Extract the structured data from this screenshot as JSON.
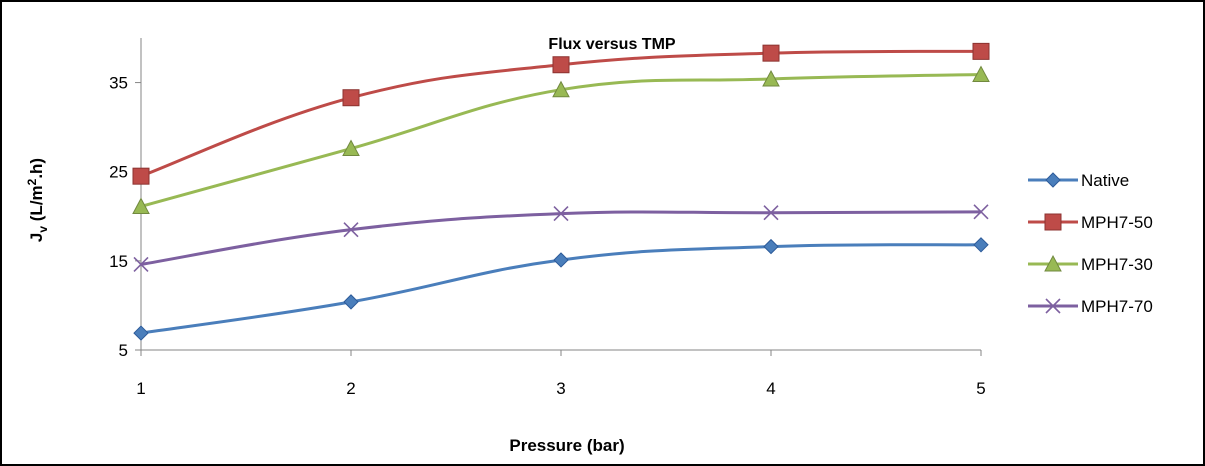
{
  "chart_data": {
    "type": "line",
    "title": "Flux versus TMP",
    "xlabel": "Pressure (bar)",
    "ylabel": {
      "main": "J",
      "sub": "v",
      "rest": " (L/m",
      "sup": "2",
      "end": ".h)"
    },
    "x": [
      1,
      2,
      3,
      4,
      5
    ],
    "xlim": [
      1,
      5
    ],
    "ylim": [
      5,
      40
    ],
    "yticks": [
      5,
      15,
      25,
      35
    ],
    "grid": false,
    "legend_position": "right",
    "series": [
      {
        "name": "Native",
        "values": [
          6.9,
          10.4,
          15.1,
          16.6,
          16.8
        ],
        "color": "#4a7ebb",
        "marker": "diamond"
      },
      {
        "name": "MPH7-50",
        "values": [
          24.5,
          33.3,
          37.0,
          38.3,
          38.5
        ],
        "color": "#be4b48",
        "marker": "square"
      },
      {
        "name": "MPH7-30",
        "values": [
          21.1,
          27.6,
          34.2,
          35.4,
          35.9
        ],
        "color": "#98b954",
        "marker": "triangle"
      },
      {
        "name": "MPH7-70",
        "values": [
          14.6,
          18.5,
          20.3,
          20.4,
          20.5
        ],
        "color": "#7d60a0",
        "marker": "x"
      }
    ]
  }
}
